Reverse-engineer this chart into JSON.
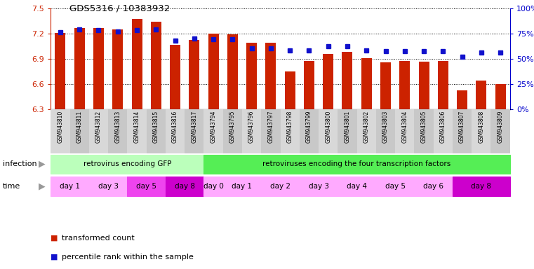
{
  "title": "GDS5316 / 10383932",
  "samples": [
    "GSM943810",
    "GSM943811",
    "GSM943812",
    "GSM943813",
    "GSM943814",
    "GSM943815",
    "GSM943816",
    "GSM943817",
    "GSM943794",
    "GSM943795",
    "GSM943796",
    "GSM943797",
    "GSM943798",
    "GSM943799",
    "GSM943800",
    "GSM943801",
    "GSM943802",
    "GSM943803",
    "GSM943804",
    "GSM943805",
    "GSM943806",
    "GSM943807",
    "GSM943808",
    "GSM943809"
  ],
  "red_values": [
    7.205,
    7.26,
    7.265,
    7.25,
    7.37,
    7.34,
    7.065,
    7.12,
    7.2,
    7.185,
    7.09,
    7.09,
    6.75,
    6.875,
    6.955,
    6.98,
    6.905,
    6.855,
    6.87,
    6.86,
    6.875,
    6.525,
    6.64,
    6.595
  ],
  "blue_values": [
    76,
    79,
    78,
    77,
    78,
    79,
    68,
    70,
    69,
    69,
    60,
    60,
    58,
    58,
    62,
    62,
    58,
    57,
    57,
    57,
    57,
    52,
    56,
    56
  ],
  "ylim_left": [
    6.3,
    7.5
  ],
  "ylim_right": [
    0,
    100
  ],
  "yticks_left": [
    6.3,
    6.6,
    6.9,
    7.2,
    7.5
  ],
  "yticks_right": [
    0,
    25,
    50,
    75,
    100
  ],
  "ytick_labels_right": [
    "0%",
    "25%",
    "50%",
    "75%",
    "100%"
  ],
  "bar_color": "#CC2200",
  "dot_color": "#1111CC",
  "bar_width": 0.55,
  "infection_groups": [
    {
      "label": "retrovirus encoding GFP",
      "start": 0,
      "end": 8,
      "color": "#BBFFBB"
    },
    {
      "label": "retroviruses encoding the four transcription factors",
      "start": 8,
      "end": 24,
      "color": "#55EE55"
    }
  ],
  "time_groups": [
    {
      "label": "day 1",
      "start": 0,
      "end": 2,
      "color": "#FFAAFF"
    },
    {
      "label": "day 3",
      "start": 2,
      "end": 4,
      "color": "#FFAAFF"
    },
    {
      "label": "day 5",
      "start": 4,
      "end": 6,
      "color": "#EE44EE"
    },
    {
      "label": "day 8",
      "start": 6,
      "end": 8,
      "color": "#CC00CC"
    },
    {
      "label": "day 0",
      "start": 8,
      "end": 9,
      "color": "#FFAAFF"
    },
    {
      "label": "day 1",
      "start": 9,
      "end": 11,
      "color": "#FFAAFF"
    },
    {
      "label": "day 2",
      "start": 11,
      "end": 13,
      "color": "#FFAAFF"
    },
    {
      "label": "day 3",
      "start": 13,
      "end": 15,
      "color": "#FFAAFF"
    },
    {
      "label": "day 4",
      "start": 15,
      "end": 17,
      "color": "#FFAAFF"
    },
    {
      "label": "day 5",
      "start": 17,
      "end": 19,
      "color": "#FFAAFF"
    },
    {
      "label": "day 6",
      "start": 19,
      "end": 21,
      "color": "#FFAAFF"
    },
    {
      "label": "day 8",
      "start": 21,
      "end": 24,
      "color": "#CC00CC"
    }
  ],
  "left_label_color": "#CC2200",
  "right_label_color": "#0000CC",
  "infection_label": "infection",
  "time_label": "time",
  "legend_items": [
    {
      "color": "#CC2200",
      "label": "transformed count"
    },
    {
      "color": "#1111CC",
      "label": "percentile rank within the sample"
    }
  ],
  "bg_color": "#FFFFFF",
  "sample_band_colors": [
    "#DDDDDD",
    "#CCCCCC"
  ]
}
